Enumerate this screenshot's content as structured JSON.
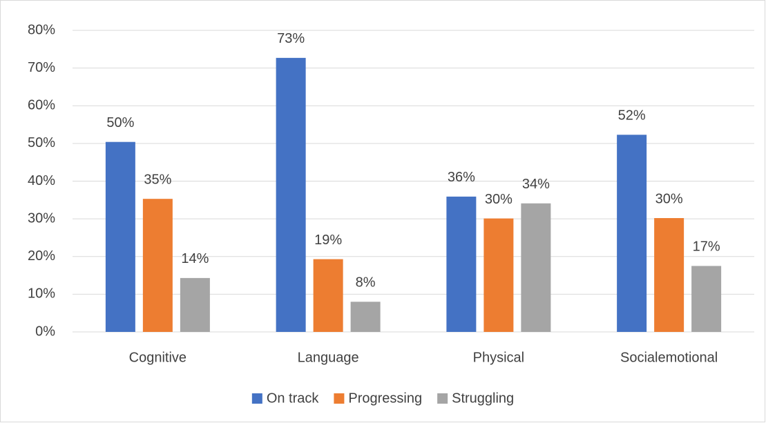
{
  "chart_data": {
    "type": "bar",
    "categories": [
      "Cognitive",
      "Language",
      "Physical",
      "Socialemotional"
    ],
    "series": [
      {
        "name": "On track",
        "color": "#4472c4",
        "values": [
          50.4,
          72.7,
          35.9,
          52.3
        ],
        "value_labels": [
          "50%",
          "73%",
          "36%",
          "52%"
        ]
      },
      {
        "name": "Progressing",
        "color": "#ed7d31",
        "values": [
          35.3,
          19.3,
          30.1,
          30.2
        ],
        "value_labels": [
          "35%",
          "19%",
          "30%",
          "30%"
        ]
      },
      {
        "name": "Struggling",
        "color": "#a5a5a5",
        "values": [
          14.3,
          8,
          34.1,
          17.5
        ],
        "value_labels": [
          "14%",
          "8%",
          "34%",
          "17%"
        ]
      }
    ],
    "ylim": [
      0,
      80
    ],
    "yticks": [
      {
        "value": 0,
        "label": "0%"
      },
      {
        "value": 10,
        "label": "10%"
      },
      {
        "value": 20,
        "label": "20%"
      },
      {
        "value": 30,
        "label": "30%"
      },
      {
        "value": 40,
        "label": "40%"
      },
      {
        "value": 50,
        "label": "50%"
      },
      {
        "value": 60,
        "label": "60%"
      },
      {
        "value": 70,
        "label": "70%"
      },
      {
        "value": 80,
        "label": "80%"
      }
    ],
    "grid": true,
    "legend": "bottom"
  }
}
